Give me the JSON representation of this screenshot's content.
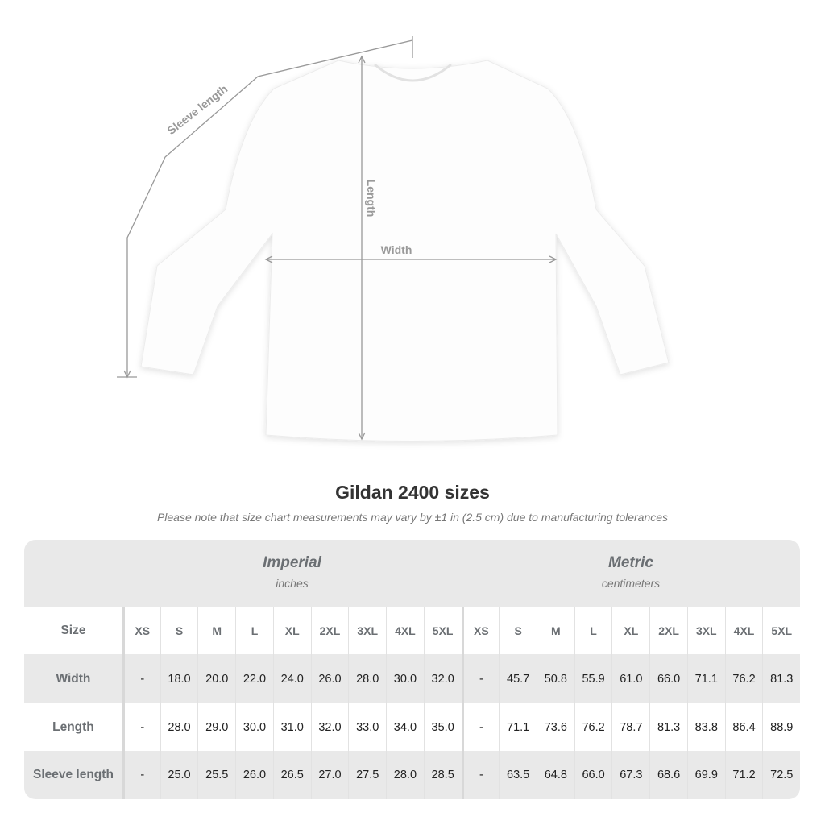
{
  "illustration": {
    "labels": {
      "sleeve": "Sleeve length",
      "length": "Length",
      "width": "Width"
    }
  },
  "title": "Gildan 2400 sizes",
  "note": "Please note that size chart measurements may vary by ±1 in (2.5 cm) due to manufacturing tolerances",
  "groups": {
    "imperial": {
      "name": "Imperial",
      "unit": "inches"
    },
    "metric": {
      "name": "Metric",
      "unit": "centimeters"
    }
  },
  "header": {
    "label": "Size",
    "imperial": [
      "XS",
      "S",
      "M",
      "L",
      "XL",
      "2XL",
      "3XL",
      "4XL",
      "5XL"
    ],
    "metric": [
      "XS",
      "S",
      "M",
      "L",
      "XL",
      "2XL",
      "3XL",
      "4XL",
      "5XL"
    ]
  },
  "rows": [
    {
      "label": "Width",
      "imperial": [
        "-",
        "18.0",
        "20.0",
        "22.0",
        "24.0",
        "26.0",
        "28.0",
        "30.0",
        "32.0"
      ],
      "metric": [
        "-",
        "45.7",
        "50.8",
        "55.9",
        "61.0",
        "66.0",
        "71.1",
        "76.2",
        "81.3"
      ]
    },
    {
      "label": "Length",
      "imperial": [
        "-",
        "28.0",
        "29.0",
        "30.0",
        "31.0",
        "32.0",
        "33.0",
        "34.0",
        "35.0"
      ],
      "metric": [
        "-",
        "71.1",
        "73.6",
        "76.2",
        "78.7",
        "81.3",
        "83.8",
        "86.4",
        "88.9"
      ]
    },
    {
      "label": "Sleeve length",
      "imperial": [
        "-",
        "25.0",
        "25.5",
        "26.0",
        "26.5",
        "27.0",
        "27.5",
        "28.0",
        "28.5"
      ],
      "metric": [
        "-",
        "63.5",
        "64.8",
        "66.0",
        "67.3",
        "68.6",
        "69.9",
        "71.2",
        "72.5"
      ]
    }
  ]
}
